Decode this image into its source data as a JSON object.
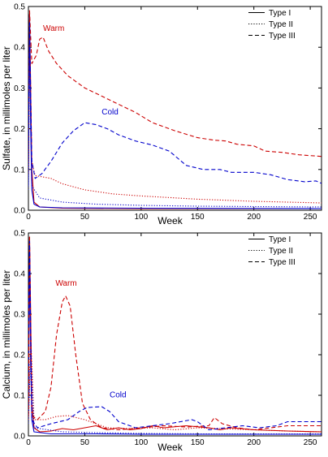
{
  "legend_labels": [
    "Type I",
    "Type II",
    "Type III"
  ],
  "colors": {
    "warm": "#cc0000",
    "cold": "#0000cc",
    "axis": "#000000"
  },
  "chart_data": [
    {
      "type": "line",
      "xlabel": "Week",
      "ylabel": "Sulfate, in millimoles per liter",
      "xlim": [
        0,
        260
      ],
      "ylim": [
        0,
        0.5
      ],
      "xticks": [
        "0",
        "50",
        "100",
        "150",
        "200",
        "250"
      ],
      "yticks": [
        "0.0",
        "0.1",
        "0.2",
        "0.3",
        "0.4",
        "0.5"
      ],
      "legend": "top-right",
      "annotations": [
        {
          "text": "Warm",
          "x": 13,
          "y": 0.44,
          "color": "#cc0000"
        },
        {
          "text": "Cold",
          "x": 65,
          "y": 0.235,
          "color": "#0000cc"
        }
      ],
      "series": [
        {
          "name": "Type I",
          "group": "Warm",
          "style": "solid",
          "color": "#cc0000",
          "points": [
            [
              0,
              0.12
            ],
            [
              1,
              0.48
            ],
            [
              2,
              0.3
            ],
            [
              3,
              0.1
            ],
            [
              5,
              0.02
            ],
            [
              10,
              0.008
            ],
            [
              30,
              0.005
            ],
            [
              100,
              0.004
            ],
            [
              260,
              0.004
            ]
          ]
        },
        {
          "name": "Type I",
          "group": "Cold",
          "style": "solid",
          "color": "#0000cc",
          "points": [
            [
              0,
              0.06
            ],
            [
              1,
              0.48
            ],
            [
              2,
              0.2
            ],
            [
              3,
              0.05
            ],
            [
              5,
              0.015
            ],
            [
              10,
              0.008
            ],
            [
              30,
              0.006
            ],
            [
              100,
              0.005
            ],
            [
              260,
              0.004
            ]
          ]
        },
        {
          "name": "Type II",
          "group": "Warm",
          "style": "dotted",
          "color": "#cc0000",
          "points": [
            [
              0,
              0.09
            ],
            [
              1,
              0.45
            ],
            [
              3,
              0.12
            ],
            [
              6,
              0.085
            ],
            [
              20,
              0.078
            ],
            [
              30,
              0.065
            ],
            [
              50,
              0.05
            ],
            [
              75,
              0.04
            ],
            [
              100,
              0.035
            ],
            [
              150,
              0.027
            ],
            [
              200,
              0.022
            ],
            [
              260,
              0.018
            ]
          ]
        },
        {
          "name": "Type II",
          "group": "Cold",
          "style": "dotted",
          "color": "#0000cc",
          "points": [
            [
              0,
              0.05
            ],
            [
              1,
              0.4
            ],
            [
              3,
              0.06
            ],
            [
              10,
              0.03
            ],
            [
              30,
              0.02
            ],
            [
              60,
              0.015
            ],
            [
              100,
              0.012
            ],
            [
              150,
              0.01
            ],
            [
              200,
              0.009
            ],
            [
              260,
              0.008
            ]
          ]
        },
        {
          "name": "Type III",
          "group": "Warm",
          "style": "dashed",
          "color": "#cc0000",
          "points": [
            [
              0,
              0.25
            ],
            [
              1,
              0.49
            ],
            [
              3,
              0.36
            ],
            [
              7,
              0.38
            ],
            [
              10,
              0.42
            ],
            [
              13,
              0.425
            ],
            [
              18,
              0.39
            ],
            [
              25,
              0.36
            ],
            [
              35,
              0.33
            ],
            [
              50,
              0.3
            ],
            [
              65,
              0.28
            ],
            [
              80,
              0.26
            ],
            [
              95,
              0.24
            ],
            [
              110,
              0.215
            ],
            [
              130,
              0.195
            ],
            [
              150,
              0.178
            ],
            [
              165,
              0.172
            ],
            [
              175,
              0.17
            ],
            [
              185,
              0.162
            ],
            [
              200,
              0.158
            ],
            [
              210,
              0.145
            ],
            [
              225,
              0.142
            ],
            [
              240,
              0.136
            ],
            [
              260,
              0.132
            ]
          ]
        },
        {
          "name": "Type III",
          "group": "Cold",
          "style": "dashed",
          "color": "#0000cc",
          "points": [
            [
              0,
              0.17
            ],
            [
              1,
              0.46
            ],
            [
              3,
              0.12
            ],
            [
              6,
              0.078
            ],
            [
              12,
              0.09
            ],
            [
              20,
              0.12
            ],
            [
              30,
              0.165
            ],
            [
              40,
              0.195
            ],
            [
              50,
              0.215
            ],
            [
              60,
              0.21
            ],
            [
              70,
              0.2
            ],
            [
              80,
              0.185
            ],
            [
              95,
              0.17
            ],
            [
              110,
              0.16
            ],
            [
              125,
              0.145
            ],
            [
              140,
              0.11
            ],
            [
              155,
              0.1
            ],
            [
              170,
              0.1
            ],
            [
              180,
              0.093
            ],
            [
              200,
              0.093
            ],
            [
              215,
              0.087
            ],
            [
              230,
              0.075
            ],
            [
              245,
              0.07
            ],
            [
              255,
              0.072
            ],
            [
              260,
              0.066
            ]
          ]
        }
      ]
    },
    {
      "type": "line",
      "xlabel": "Week",
      "ylabel": "Calcium, in millimoles per liter",
      "xlim": [
        0,
        260
      ],
      "ylim": [
        0,
        0.5
      ],
      "xticks": [
        "0",
        "50",
        "100",
        "150",
        "200",
        "250"
      ],
      "yticks": [
        "0.0",
        "0.1",
        "0.2",
        "0.3",
        "0.4",
        "0.5"
      ],
      "legend": "top-right",
      "annotations": [
        {
          "text": "Warm",
          "x": 24,
          "y": 0.37,
          "color": "#cc0000"
        },
        {
          "text": "Cold",
          "x": 72,
          "y": 0.095,
          "color": "#0000cc"
        }
      ],
      "series": [
        {
          "name": "Type I",
          "group": "Warm",
          "style": "solid",
          "color": "#cc0000",
          "points": [
            [
              0,
              0.1
            ],
            [
              1,
              0.49
            ],
            [
              2,
              0.3
            ],
            [
              3,
              0.08
            ],
            [
              5,
              0.02
            ],
            [
              10,
              0.01
            ],
            [
              20,
              0.012
            ],
            [
              30,
              0.018
            ],
            [
              40,
              0.015
            ],
            [
              50,
              0.02
            ],
            [
              60,
              0.025
            ],
            [
              70,
              0.015
            ],
            [
              80,
              0.02
            ],
            [
              90,
              0.015
            ],
            [
              100,
              0.018
            ],
            [
              110,
              0.025
            ],
            [
              120,
              0.02
            ],
            [
              140,
              0.025
            ],
            [
              160,
              0.02
            ],
            [
              170,
              0.015
            ],
            [
              180,
              0.02
            ],
            [
              200,
              0.015
            ],
            [
              230,
              0.012
            ],
            [
              260,
              0.01
            ]
          ]
        },
        {
          "name": "Type I",
          "group": "Cold",
          "style": "solid",
          "color": "#0000cc",
          "points": [
            [
              0,
              0.05
            ],
            [
              1,
              0.45
            ],
            [
              2,
              0.2
            ],
            [
              3,
              0.04
            ],
            [
              5,
              0.01
            ],
            [
              20,
              0.005
            ],
            [
              60,
              0.005
            ],
            [
              100,
              0.004
            ],
            [
              200,
              0.004
            ],
            [
              260,
              0.004
            ]
          ]
        },
        {
          "name": "Type II",
          "group": "Warm",
          "style": "dotted",
          "color": "#cc0000",
          "points": [
            [
              0,
              0.04
            ],
            [
              2,
              0.25
            ],
            [
              5,
              0.04
            ],
            [
              15,
              0.04
            ],
            [
              25,
              0.048
            ],
            [
              35,
              0.05
            ],
            [
              50,
              0.04
            ],
            [
              70,
              0.02
            ],
            [
              90,
              0.018
            ],
            [
              110,
              0.02
            ],
            [
              130,
              0.015
            ],
            [
              150,
              0.02
            ],
            [
              170,
              0.018
            ],
            [
              200,
              0.015
            ],
            [
              230,
              0.012
            ],
            [
              260,
              0.01
            ]
          ]
        },
        {
          "name": "Type II",
          "group": "Cold",
          "style": "dotted",
          "color": "#0000cc",
          "points": [
            [
              0,
              0.03
            ],
            [
              2,
              0.2
            ],
            [
              5,
              0.02
            ],
            [
              30,
              0.01
            ],
            [
              60,
              0.008
            ],
            [
              100,
              0.006
            ],
            [
              150,
              0.005
            ],
            [
              200,
              0.005
            ],
            [
              260,
              0.005
            ]
          ]
        },
        {
          "name": "Type III",
          "group": "Warm",
          "style": "dashed",
          "color": "#cc0000",
          "points": [
            [
              0,
              0.05
            ],
            [
              1,
              0.49
            ],
            [
              3,
              0.05
            ],
            [
              8,
              0.04
            ],
            [
              15,
              0.06
            ],
            [
              20,
              0.12
            ],
            [
              25,
              0.25
            ],
            [
              30,
              0.33
            ],
            [
              33,
              0.345
            ],
            [
              37,
              0.32
            ],
            [
              42,
              0.2
            ],
            [
              48,
              0.08
            ],
            [
              55,
              0.04
            ],
            [
              65,
              0.02
            ],
            [
              80,
              0.015
            ],
            [
              100,
              0.02
            ],
            [
              120,
              0.025
            ],
            [
              140,
              0.022
            ],
            [
              160,
              0.025
            ],
            [
              165,
              0.045
            ],
            [
              172,
              0.03
            ],
            [
              185,
              0.02
            ],
            [
              200,
              0.015
            ],
            [
              215,
              0.02
            ],
            [
              230,
              0.025
            ],
            [
              260,
              0.025
            ]
          ]
        },
        {
          "name": "Type III",
          "group": "Cold",
          "style": "dashed",
          "color": "#0000cc",
          "points": [
            [
              0,
              0.25
            ],
            [
              1,
              0.48
            ],
            [
              3,
              0.04
            ],
            [
              8,
              0.02
            ],
            [
              20,
              0.03
            ],
            [
              35,
              0.04
            ],
            [
              45,
              0.06
            ],
            [
              52,
              0.07
            ],
            [
              65,
              0.072
            ],
            [
              72,
              0.06
            ],
            [
              80,
              0.035
            ],
            [
              95,
              0.02
            ],
            [
              110,
              0.025
            ],
            [
              125,
              0.03
            ],
            [
              135,
              0.035
            ],
            [
              145,
              0.04
            ],
            [
              150,
              0.035
            ],
            [
              160,
              0.015
            ],
            [
              175,
              0.02
            ],
            [
              190,
              0.025
            ],
            [
              205,
              0.02
            ],
            [
              220,
              0.025
            ],
            [
              230,
              0.035
            ],
            [
              260,
              0.035
            ]
          ]
        }
      ]
    }
  ]
}
